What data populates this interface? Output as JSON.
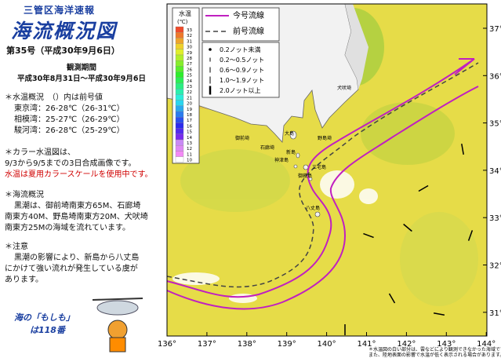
{
  "header": {
    "office": "三管区海洋速報",
    "title": "海流概況図",
    "issue": "第35号（平成30年9月6日）",
    "period_label": "観測期間",
    "period": "平成30年8月31日～平成30年9月6日"
  },
  "temperature": {
    "heading": "＊水温概況　（）内は前号値",
    "lines": [
      "東京湾：26-28℃（26-31℃）",
      "相模湾：25-27℃（26-29℃）",
      "駿河湾：26-28℃（25-29℃）"
    ]
  },
  "color_map": {
    "heading": "＊カラー水温図は、",
    "line": "9/3から9/5までの3日合成画像です。",
    "note": "水温は夏用カラースケールを使用中です。"
  },
  "current": {
    "heading": "＊海流概況",
    "lines": [
      "黒潮は、御前埼南東方65M、石廊埼",
      "南東方40M、野島埼南東方20M、犬吠埼",
      "南東方25Mの海域を流れています。"
    ]
  },
  "caution": {
    "heading": "＊注意",
    "lines": [
      "黒潮の影響により、新島から八丈島",
      "にかけて強い流れが発生している虞が",
      "あります。"
    ]
  },
  "hotline": {
    "line1": "海の「もしも」",
    "line2": "は118番"
  },
  "map": {
    "scale_title": "水温",
    "scale_unit": "(℃)",
    "scale": [
      "33",
      "32",
      "31",
      "30",
      "29",
      "28",
      "27",
      "26",
      "25",
      "24",
      "23",
      "22",
      "21",
      "20",
      "19",
      "18",
      "17",
      "16",
      "15",
      "14",
      "13",
      "12",
      "11",
      "10"
    ],
    "line_legend": [
      "今号流線",
      "前号流線"
    ],
    "arrow_legend": [
      "0.2ノット未満",
      "0.2～0.5ノット",
      "0.6～0.9ノット",
      "1.0～1.9ノット",
      "2.0ノット以上"
    ],
    "lon_labels": [
      "136°",
      "137°",
      "138°",
      "139°",
      "140°",
      "141°",
      "142°",
      "143°",
      "144°"
    ],
    "lat_labels": [
      "37°",
      "36°",
      "35°",
      "34°",
      "33°",
      "32°",
      "31°"
    ],
    "places": [
      "大島",
      "新島",
      "神津島",
      "三宅島",
      "御蔵島",
      "八丈島",
      "犬吠埼",
      "野島埼",
      "石廊埼",
      "御前埼"
    ],
    "notes": [
      "＊水温図の白い部分は、雲などにより観測できなかった海域です。",
      "また、陸地表面の影響で水温が低く表示される場合があります。"
    ]
  }
}
